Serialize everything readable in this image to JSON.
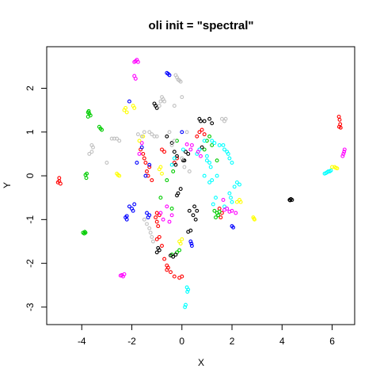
{
  "chart_data": {
    "type": "scatter",
    "title": "oli init = \"spectral\"",
    "xlabel": "X",
    "ylabel": "Y",
    "xlim": [
      -5.4,
      6.9
    ],
    "ylim": [
      -3.4,
      2.95
    ],
    "x_ticks": [
      -4,
      -2,
      0,
      2,
      4,
      6
    ],
    "y_ticks": [
      -3,
      -2,
      -1,
      0,
      1,
      2
    ],
    "grid": false,
    "series": [
      {
        "color": "#ff0000",
        "points": [
          [
            -4.95,
            -0.15
          ],
          [
            -4.9,
            -0.12
          ],
          [
            -4.85,
            -0.18
          ],
          [
            -4.9,
            -0.05
          ],
          [
            6.27,
            1.35
          ],
          [
            6.3,
            1.28
          ],
          [
            6.32,
            1.18
          ],
          [
            6.28,
            1.12
          ],
          [
            6.34,
            1.1
          ],
          [
            -1.65,
            0.6
          ],
          [
            -1.55,
            0.5
          ],
          [
            -1.5,
            0.4
          ],
          [
            -1.45,
            0.3
          ],
          [
            -1.3,
            0.2
          ],
          [
            -1.4,
            0.1
          ],
          [
            -1.35,
            0.0
          ],
          [
            -1.2,
            -0.1
          ],
          [
            -1.0,
            -0.85
          ],
          [
            -1.05,
            -0.95
          ],
          [
            -0.9,
            -0.9
          ],
          [
            -0.9,
            -1.4
          ],
          [
            -0.8,
            -1.6
          ],
          [
            -0.7,
            -1.9
          ],
          [
            -0.6,
            -2.05
          ],
          [
            -0.55,
            -2.1
          ],
          [
            -0.45,
            -2.2
          ],
          [
            -0.3,
            -2.3
          ],
          [
            -0.1,
            -2.33
          ],
          [
            0.0,
            -2.3
          ],
          [
            -0.6,
            -2.15
          ],
          [
            -1.0,
            -1.45
          ],
          [
            -1.0,
            -1.05
          ],
          [
            -0.95,
            -1.15
          ],
          [
            0.8,
            1.05
          ],
          [
            0.7,
            1.0
          ],
          [
            0.9,
            0.95
          ],
          [
            0.6,
            0.9
          ],
          [
            1.5,
            -0.75
          ],
          [
            1.6,
            -0.85
          ],
          [
            1.55,
            -0.95
          ],
          [
            -0.8,
            0.6
          ],
          [
            -0.7,
            0.55
          ],
          [
            -0.2,
            0.4
          ],
          [
            -0.3,
            0.3
          ]
        ]
      },
      {
        "color": "#00cc00",
        "points": [
          [
            -3.75,
            1.45
          ],
          [
            -3.7,
            1.42
          ],
          [
            -3.65,
            1.38
          ],
          [
            -3.75,
            1.35
          ],
          [
            -3.72,
            1.48
          ],
          [
            -3.3,
            1.12
          ],
          [
            -3.25,
            1.08
          ],
          [
            -3.2,
            1.05
          ],
          [
            -3.85,
            0.02
          ],
          [
            -3.82,
            -0.05
          ],
          [
            -3.8,
            0.05
          ],
          [
            -3.95,
            -1.3
          ],
          [
            -3.9,
            -1.32
          ],
          [
            -3.85,
            -1.3
          ],
          [
            -3.88,
            -1.28
          ],
          [
            1.3,
            -0.8
          ],
          [
            1.4,
            -0.85
          ],
          [
            1.45,
            -0.9
          ],
          [
            1.35,
            -0.95
          ],
          [
            1.5,
            -0.82
          ],
          [
            1.2,
            0.7
          ],
          [
            1.0,
            0.8
          ],
          [
            1.1,
            0.9
          ],
          [
            0.9,
            0.6
          ],
          [
            1.4,
            0.35
          ],
          [
            -0.2,
            -1.75
          ],
          [
            -0.4,
            -1.8
          ],
          [
            -0.1,
            -1.7
          ],
          [
            -0.35,
            0.1
          ],
          [
            -0.6,
            -0.1
          ],
          [
            -0.2,
            0.8
          ],
          [
            -0.85,
            -0.5
          ],
          [
            -0.4,
            -0.75
          ]
        ]
      },
      {
        "color": "#0000ff",
        "points": [
          [
            -0.6,
            2.35
          ],
          [
            -0.55,
            2.33
          ],
          [
            -0.5,
            2.3
          ],
          [
            -2.1,
            -0.7
          ],
          [
            -2.0,
            -0.75
          ],
          [
            -1.9,
            -0.65
          ],
          [
            -1.95,
            -0.8
          ],
          [
            -2.25,
            -0.95
          ],
          [
            -2.2,
            -1.0
          ],
          [
            -2.2,
            -0.92
          ],
          [
            -1.4,
            -0.85
          ],
          [
            -1.35,
            -0.95
          ],
          [
            -1.3,
            -0.9
          ],
          [
            0.35,
            -1.5
          ],
          [
            0.4,
            -1.6
          ],
          [
            0.38,
            -1.55
          ],
          [
            2.0,
            -1.15
          ],
          [
            2.05,
            -1.18
          ],
          [
            -2.1,
            1.7
          ],
          [
            -1.6,
            0.65
          ],
          [
            -1.45,
            0.0
          ],
          [
            -1.3,
            0.25
          ],
          [
            0.0,
            1.0
          ],
          [
            -1.8,
            0.3
          ]
        ]
      },
      {
        "color": "#000000",
        "points": [
          [
            4.3,
            -0.55
          ],
          [
            4.35,
            -0.53
          ],
          [
            4.4,
            -0.55
          ],
          [
            4.32,
            -0.56
          ],
          [
            -1.1,
            1.65
          ],
          [
            -1.05,
            1.6
          ],
          [
            -1.0,
            1.55
          ],
          [
            -0.95,
            -1.65
          ],
          [
            -1.0,
            -1.75
          ],
          [
            -0.9,
            -1.7
          ],
          [
            -0.3,
            0.55
          ],
          [
            -0.2,
            0.45
          ],
          [
            0.05,
            0.35
          ],
          [
            0.1,
            0.35
          ],
          [
            0.25,
            0.5
          ],
          [
            -0.2,
            -0.45
          ],
          [
            -0.15,
            -0.4
          ],
          [
            -0.05,
            -0.3
          ],
          [
            0.35,
            -1.25
          ],
          [
            0.25,
            -1.28
          ],
          [
            -0.45,
            -1.82
          ],
          [
            -0.35,
            -1.85
          ],
          [
            -0.25,
            -1.8
          ],
          [
            0.7,
            1.3
          ],
          [
            0.75,
            1.25
          ],
          [
            0.9,
            1.25
          ],
          [
            1.1,
            1.3
          ],
          [
            1.2,
            1.2
          ],
          [
            -0.6,
            0.9
          ],
          [
            -0.4,
            0.75
          ],
          [
            0.3,
            -0.8
          ],
          [
            0.5,
            -0.7
          ],
          [
            0.6,
            -0.8
          ],
          [
            0.45,
            -0.9
          ],
          [
            0.55,
            -1.0
          ],
          [
            0.8,
            0.65
          ],
          [
            -0.25,
            0.25
          ],
          [
            0.15,
            0.55
          ]
        ]
      },
      {
        "color": "#00ffff",
        "points": [
          [
            5.7,
            0.05
          ],
          [
            5.75,
            0.06
          ],
          [
            5.8,
            0.08
          ],
          [
            5.85,
            0.1
          ],
          [
            5.9,
            0.1
          ],
          [
            5.95,
            0.12
          ],
          [
            0.2,
            -2.55
          ],
          [
            0.25,
            -2.6
          ],
          [
            0.22,
            -2.65
          ],
          [
            0.15,
            -2.95
          ],
          [
            0.12,
            -3.0
          ],
          [
            1.2,
            0.8
          ],
          [
            1.3,
            0.75
          ],
          [
            1.5,
            0.7
          ],
          [
            1.7,
            0.6
          ],
          [
            1.85,
            0.5
          ],
          [
            2.0,
            0.3
          ],
          [
            1.8,
            0.55
          ],
          [
            1.65,
            0.7
          ],
          [
            1.9,
            0.4
          ],
          [
            0.9,
            0.8
          ],
          [
            0.7,
            0.6
          ],
          [
            0.6,
            0.5
          ],
          [
            1.0,
            0.45
          ],
          [
            1.1,
            0.3
          ],
          [
            2.1,
            -0.25
          ],
          [
            1.9,
            -0.4
          ],
          [
            1.95,
            -0.5
          ],
          [
            2.2,
            -0.15
          ],
          [
            2.3,
            -0.2
          ],
          [
            2.0,
            -0.6
          ],
          [
            1.7,
            -0.7
          ],
          [
            1.25,
            -0.65
          ],
          [
            1.35,
            -0.5
          ],
          [
            1.4,
            0.0
          ],
          [
            1.2,
            -0.1
          ],
          [
            1.1,
            -0.15
          ],
          [
            0.9,
            0.0
          ],
          [
            1.15,
            0.2
          ],
          [
            1.0,
            0.35
          ],
          [
            -0.4,
            0.25
          ],
          [
            -0.3,
            0.4
          ],
          [
            0.05,
            0.6
          ]
        ]
      },
      {
        "color": "#ff00ff",
        "points": [
          [
            -1.85,
            2.62
          ],
          [
            -1.8,
            2.65
          ],
          [
            -1.75,
            2.6
          ],
          [
            -1.9,
            2.6
          ],
          [
            -1.9,
            2.28
          ],
          [
            -1.85,
            2.22
          ],
          [
            6.5,
            0.6
          ],
          [
            6.48,
            0.55
          ],
          [
            6.45,
            0.5
          ],
          [
            6.42,
            0.45
          ],
          [
            -2.4,
            -2.27
          ],
          [
            -2.35,
            -2.3
          ],
          [
            -2.3,
            -2.25
          ],
          [
            -2.45,
            -2.28
          ],
          [
            0.2,
            0.72
          ],
          [
            0.4,
            0.7
          ],
          [
            0.65,
            0.55
          ],
          [
            0.75,
            0.45
          ],
          [
            0.35,
            0.6
          ],
          [
            1.8,
            -0.75
          ],
          [
            1.9,
            -0.82
          ],
          [
            2.0,
            -0.8
          ],
          [
            2.15,
            -0.85
          ],
          [
            1.65,
            -0.55
          ],
          [
            1.7,
            -0.78
          ],
          [
            -0.85,
            -0.85
          ],
          [
            -0.75,
            -1.0
          ],
          [
            -0.5,
            -1.05
          ],
          [
            -0.4,
            -0.9
          ],
          [
            -0.6,
            -0.7
          ],
          [
            -1.6,
            0.75
          ],
          [
            -1.7,
            0.5
          ]
        ]
      },
      {
        "color": "#ffff00",
        "points": [
          [
            -2.3,
            1.5
          ],
          [
            -2.25,
            1.55
          ],
          [
            -2.2,
            1.45
          ],
          [
            -1.95,
            1.6
          ],
          [
            -1.9,
            1.55
          ],
          [
            -2.6,
            0.05
          ],
          [
            -2.55,
            0.02
          ],
          [
            -2.5,
            0.0
          ],
          [
            -0.1,
            -1.5
          ],
          [
            -0.05,
            -1.55
          ],
          [
            0.0,
            -1.45
          ],
          [
            2.85,
            -0.95
          ],
          [
            2.9,
            -1.0
          ],
          [
            2.88,
            -0.98
          ],
          [
            6.0,
            0.2
          ],
          [
            6.1,
            0.2
          ],
          [
            6.15,
            0.18
          ],
          [
            6.2,
            0.17
          ],
          [
            2.3,
            -0.55
          ],
          [
            2.35,
            -0.6
          ],
          [
            2.2,
            -0.6
          ],
          [
            -0.9,
            0.15
          ],
          [
            -0.85,
            0.2
          ],
          [
            -0.8,
            0.05
          ],
          [
            -1.55,
            0.9
          ],
          [
            -1.7,
            0.8
          ]
        ]
      },
      {
        "color": "#c0c0c0",
        "points": [
          [
            -0.15,
            2.2
          ],
          [
            -0.1,
            2.18
          ],
          [
            -0.05,
            2.15
          ],
          [
            -0.2,
            2.25
          ],
          [
            -0.25,
            2.3
          ],
          [
            -0.8,
            1.8
          ],
          [
            -0.75,
            1.75
          ],
          [
            -0.85,
            1.7
          ],
          [
            -0.9,
            1.6
          ],
          [
            -0.7,
            1.7
          ],
          [
            0.0,
            1.8
          ],
          [
            -0.3,
            1.6
          ],
          [
            -3.6,
            0.7
          ],
          [
            -3.55,
            0.65
          ],
          [
            -3.6,
            0.55
          ],
          [
            -3.7,
            0.5
          ],
          [
            -2.8,
            0.85
          ],
          [
            -2.7,
            0.85
          ],
          [
            -2.6,
            0.85
          ],
          [
            -2.5,
            0.8
          ],
          [
            -3.0,
            0.3
          ],
          [
            -1.75,
            0.95
          ],
          [
            -1.6,
            0.9
          ],
          [
            -1.5,
            1.0
          ],
          [
            -1.3,
            1.0
          ],
          [
            -1.2,
            0.95
          ],
          [
            -1.1,
            0.9
          ],
          [
            -1.0,
            0.9
          ],
          [
            -1.5,
            -1.0
          ],
          [
            -1.4,
            -1.1
          ],
          [
            -1.3,
            -1.2
          ],
          [
            -1.25,
            -1.3
          ],
          [
            -1.2,
            -1.4
          ],
          [
            -1.15,
            -1.5
          ],
          [
            0.0,
            0.4
          ],
          [
            0.1,
            0.2
          ],
          [
            0.3,
            0.1
          ],
          [
            -0.4,
            0.7
          ],
          [
            1.6,
            1.3
          ],
          [
            1.7,
            1.25
          ],
          [
            1.75,
            1.3
          ],
          [
            -0.5,
            1.0
          ],
          [
            -0.3,
            0.8
          ],
          [
            0.2,
            1.0
          ]
        ]
      }
    ]
  }
}
